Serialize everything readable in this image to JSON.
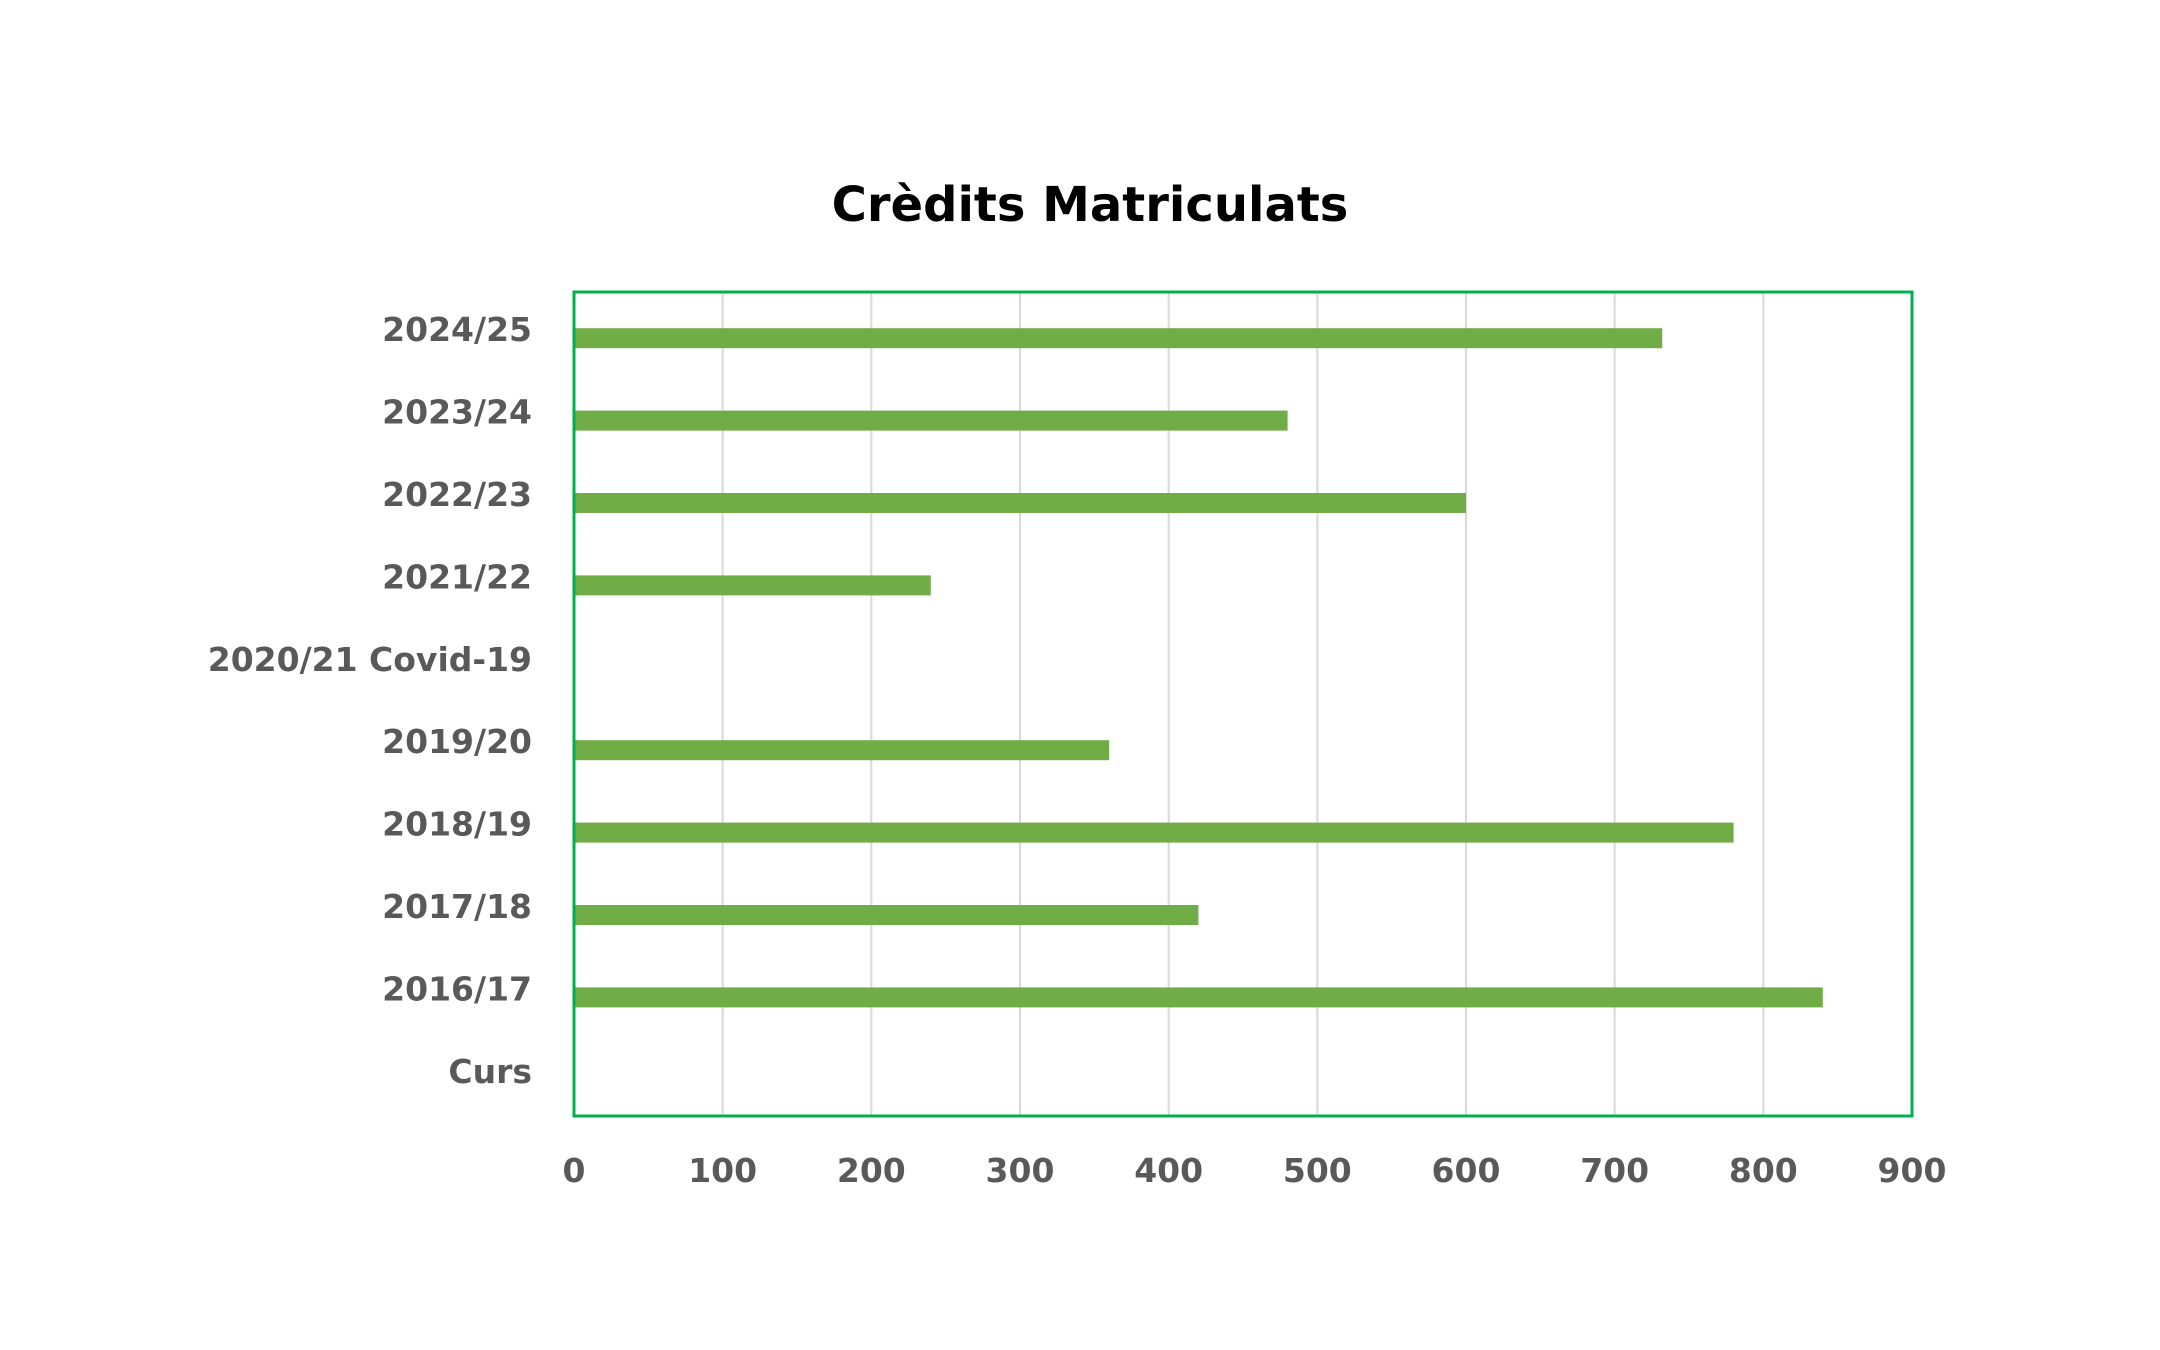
{
  "chart_data": {
    "type": "bar",
    "orientation": "horizontal",
    "title": "Crèdits Matriculats",
    "xlabel": "",
    "ylabel": "",
    "categories": [
      "Curs",
      "2016/17",
      "2017/18",
      "2018/19",
      "2019/20",
      "2020/21 Covid-19",
      "2021/22",
      "2022/23",
      "2023/24",
      "2024/25"
    ],
    "series": [
      {
        "values": [
          null,
          840,
          420,
          780,
          360,
          null,
          240,
          600,
          480,
          732
        ]
      }
    ],
    "xlim": [
      0,
      900
    ],
    "xticks": [
      "0",
      "100",
      "200",
      "300",
      "400",
      "500",
      "600",
      "700",
      "800",
      "900"
    ],
    "grid": true,
    "legend": "none",
    "colors": {
      "bar": "#70ad47",
      "plot_border": "#00b050",
      "grid": "#d9d9d9",
      "label": "#595959",
      "title": "#000000"
    }
  }
}
